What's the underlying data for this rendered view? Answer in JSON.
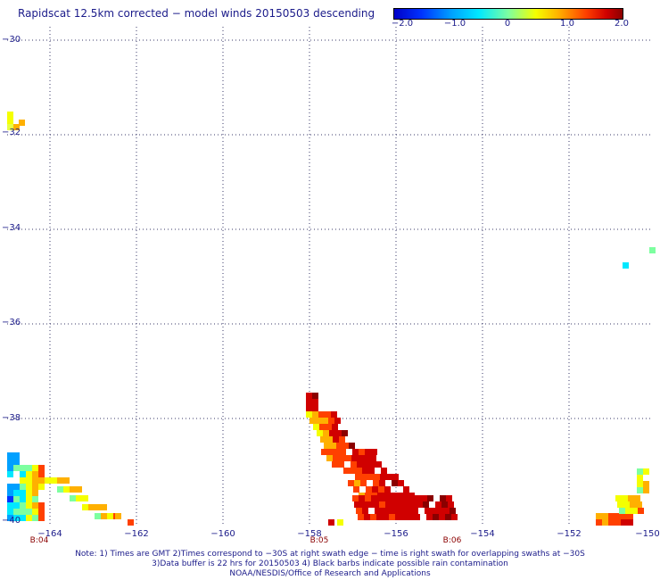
{
  "title": "Rapidscat 12.5km corrected − model winds 20150503 descending",
  "colorbar": {
    "labels": [
      "−2.0",
      "−1.0",
      "0",
      "1.0",
      "2.0"
    ],
    "range": [
      -2.0,
      2.0
    ]
  },
  "axes": {
    "lat_labels": [
      "−30",
      "−32",
      "−34",
      "−36",
      "−38",
      "−40"
    ],
    "lon_labels": [
      "−164",
      "−162",
      "−160",
      "−158",
      "−156",
      "−154",
      "−152",
      "−150"
    ],
    "lat_range": [
      -40,
      -30
    ],
    "lon_range": [
      -165,
      -150
    ],
    "grid": "dotted"
  },
  "time_labels": [
    "B:04",
    "B:05",
    "B:06"
  ],
  "notes": [
    "Note: 1) Times are GMT 2)Times correspond to −30S at right swath edge − time is right swath for overlapping swaths at −30S",
    "3)Data buffer is 22 hrs for 20150503 4) Black barbs indicate possible rain contamination",
    "NOAA/NESDIS/Office of Research and Applications"
  ]
}
